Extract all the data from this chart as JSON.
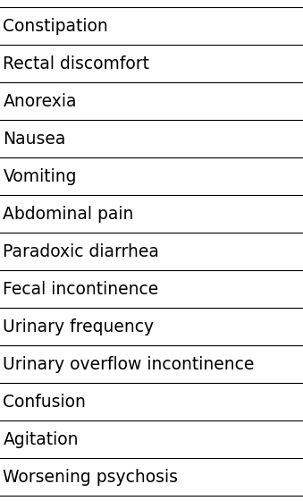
{
  "symptoms": [
    "Constipation",
    "Rectal discomfort",
    "Anorexia",
    "Nausea",
    "Vomiting",
    "Abdominal pain",
    "Paradoxic diarrhea",
    "Fecal incontinence",
    "Urinary frequency",
    "Urinary overflow incontinence",
    "Confusion",
    "Agitation",
    "Worsening psychosis"
  ],
  "background_color": "#ffffff",
  "text_color": "#000000",
  "line_color": "#000000",
  "font_size": 13.5,
  "fig_width": 3.39,
  "fig_height": 5.6
}
